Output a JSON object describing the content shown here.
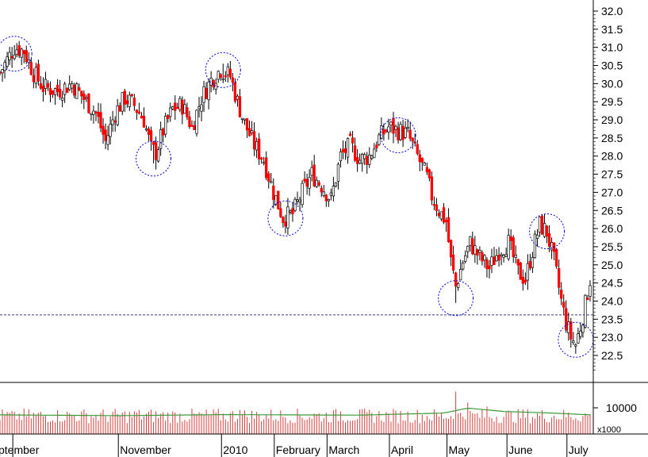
{
  "chart_data": {
    "type": "candlestick",
    "price_axis": {
      "ylim": [
        22.0,
        32.2
      ],
      "ticks": [
        32.0,
        31.5,
        31.0,
        30.5,
        30.0,
        29.5,
        29.0,
        28.5,
        28.0,
        27.5,
        27.0,
        26.5,
        26.0,
        25.5,
        25.0,
        24.5,
        24.0,
        23.5,
        23.0,
        22.5
      ],
      "tick_labels": [
        "32.0",
        "31.5",
        "31.0",
        "30.5",
        "30.0",
        "29.5",
        "29.0",
        "28.5",
        "28.0",
        "27.5",
        "27.0",
        "26.5",
        "26.0",
        "25.5",
        "25.0",
        "24.5",
        "24.0",
        "23.5",
        "23.0",
        "22.5"
      ]
    },
    "volume_axis": {
      "ylim": [
        0,
        18000
      ],
      "ticks": [
        10000
      ],
      "tick_labels": [
        "10000"
      ],
      "unit_label": "x1000"
    },
    "months": [
      {
        "label": "ptember",
        "day": 6
      },
      {
        "label": "November",
        "day": 50
      },
      {
        "label": "2010",
        "day": 93
      },
      {
        "label": "February",
        "day": 115
      },
      {
        "label": "March",
        "day": 137
      },
      {
        "label": "April",
        "day": 163
      },
      {
        "label": "May",
        "day": 187
      },
      {
        "label": "June",
        "day": 212
      },
      {
        "label": "July",
        "day": 237
      }
    ],
    "support_line": 23.62,
    "price_path": [
      [
        0,
        30.3
      ],
      [
        6,
        31.0
      ],
      [
        10,
        30.9
      ],
      [
        14,
        30.3
      ],
      [
        18,
        29.9
      ],
      [
        24,
        29.8
      ],
      [
        30,
        30.0
      ],
      [
        36,
        29.5
      ],
      [
        40,
        29.2
      ],
      [
        44,
        28.4
      ],
      [
        48,
        29.2
      ],
      [
        52,
        29.6
      ],
      [
        56,
        29.4
      ],
      [
        60,
        29.0
      ],
      [
        63,
        28.2
      ],
      [
        65,
        28.1
      ],
      [
        68,
        28.7
      ],
      [
        72,
        29.3
      ],
      [
        76,
        29.4
      ],
      [
        80,
        28.8
      ],
      [
        84,
        29.6
      ],
      [
        88,
        30.1
      ],
      [
        92,
        30.4
      ],
      [
        96,
        30.2
      ],
      [
        99,
        29.5
      ],
      [
        102,
        28.9
      ],
      [
        106,
        28.3
      ],
      [
        110,
        27.9
      ],
      [
        114,
        27.0
      ],
      [
        118,
        26.3
      ],
      [
        122,
        26.4
      ],
      [
        126,
        27.0
      ],
      [
        130,
        27.5
      ],
      [
        134,
        27.2
      ],
      [
        138,
        26.8
      ],
      [
        142,
        28.0
      ],
      [
        146,
        28.3
      ],
      [
        150,
        27.9
      ],
      [
        154,
        28.0
      ],
      [
        158,
        28.5
      ],
      [
        162,
        28.8
      ],
      [
        166,
        28.7
      ],
      [
        170,
        28.6
      ],
      [
        174,
        28.0
      ],
      [
        178,
        27.4
      ],
      [
        180,
        26.9
      ],
      [
        183,
        26.5
      ],
      [
        186,
        26.2
      ],
      [
        188,
        25.1
      ],
      [
        190,
        24.4
      ],
      [
        193,
        25.1
      ],
      [
        196,
        25.6
      ],
      [
        200,
        25.2
      ],
      [
        204,
        24.9
      ],
      [
        208,
        25.4
      ],
      [
        212,
        25.6
      ],
      [
        216,
        24.8
      ],
      [
        219,
        24.6
      ],
      [
        222,
        25.4
      ],
      [
        225,
        26.1
      ],
      [
        228,
        25.9
      ],
      [
        231,
        25.1
      ],
      [
        234,
        24.0
      ],
      [
        236,
        23.4
      ],
      [
        238,
        23.0
      ],
      [
        240,
        22.8
      ],
      [
        242,
        23.3
      ],
      [
        244,
        23.9
      ],
      [
        246,
        24.6
      ]
    ],
    "highlighted_extremes": [
      {
        "day": 6,
        "price": 31.0,
        "kind": "high"
      },
      {
        "day": 64,
        "price": 27.8,
        "kind": "low"
      },
      {
        "day": 93,
        "price": 30.55,
        "kind": "high"
      },
      {
        "day": 119,
        "price": 26.15,
        "kind": "low"
      },
      {
        "day": 166,
        "price": 28.75,
        "kind": "high"
      },
      {
        "day": 190,
        "price": 23.95,
        "kind": "low"
      },
      {
        "day": 228,
        "price": 26.1,
        "kind": "high"
      },
      {
        "day": 240,
        "price": 22.8,
        "kind": "low"
      }
    ],
    "volume": {
      "baseline": 7500,
      "moving_average": [
        [
          0,
          7300
        ],
        [
          50,
          7000
        ],
        [
          93,
          7400
        ],
        [
          150,
          7200
        ],
        [
          185,
          8000
        ],
        [
          195,
          9900
        ],
        [
          210,
          8600
        ],
        [
          230,
          8000
        ],
        [
          246,
          7300
        ]
      ],
      "spikes": [
        [
          6,
          8500
        ],
        [
          57,
          8200
        ],
        [
          100,
          9200
        ],
        [
          142,
          8600
        ],
        [
          190,
          16200
        ],
        [
          195,
          12000
        ],
        [
          203,
          10500
        ],
        [
          216,
          9500
        ]
      ]
    },
    "colors": {
      "up_candle": "#ffffff",
      "down_candle": "#ff0000",
      "wick": "#000000",
      "circle": "#0000cc",
      "support_line": "#3c3c82",
      "volume_ma": "#3a9a3a",
      "volume_bar": "#d44040"
    }
  }
}
